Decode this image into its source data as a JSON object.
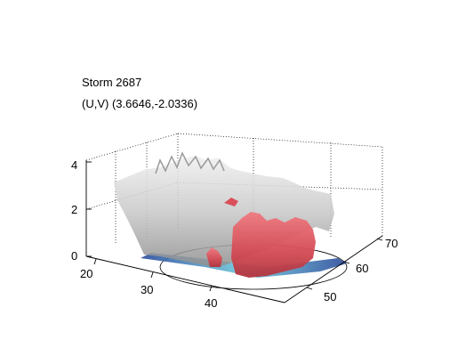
{
  "title": {
    "line1": "Storm 2687",
    "line2": "(U,V) (3.6646,-2.0336)"
  },
  "axes": {
    "z_ticks": [
      "0",
      "2",
      "4"
    ],
    "x_ticks": [
      "20",
      "30",
      "40"
    ],
    "y_ticks": [
      "50",
      "60",
      "70"
    ]
  },
  "colors": {
    "grey_surface": "#bdbdbd",
    "red_surface": "#d9505a",
    "base_blue": "#3a5fb0",
    "base_cyan": "#7fd0e0"
  }
}
